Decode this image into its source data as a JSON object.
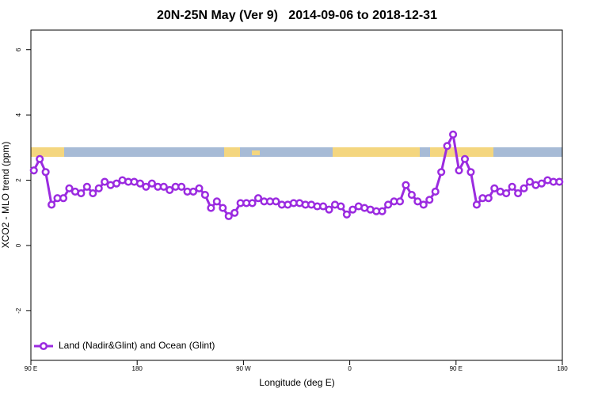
{
  "chart_data": {
    "type": "line",
    "title": "20N-25N May (Ver 9)   2014-09-06 to 2018-12-31",
    "x_label": "Longitude (deg E)",
    "y_label": "XCO2 - MLO trend (ppm)",
    "xlim": [
      90,
      540
    ],
    "ylim": [
      -3.52,
      6.6
    ],
    "xticks": [
      {
        "value": 90,
        "label": "90 E"
      },
      {
        "value": 180,
        "label": "180"
      },
      {
        "value": 270,
        "label": "90 W"
      },
      {
        "value": 360,
        "label": "0"
      },
      {
        "value": 450,
        "label": "90 E"
      },
      {
        "value": 540,
        "label": "180"
      }
    ],
    "yticks": [
      -2,
      0,
      2,
      4,
      6
    ],
    "legend": "bottom-left",
    "x": [
      92.5,
      97.5,
      102.5,
      107.5,
      112.5,
      117.5,
      122.5,
      127.5,
      132.5,
      137.5,
      142.5,
      147.5,
      152.5,
      157.5,
      162.5,
      167.5,
      172.5,
      177.5,
      182.5,
      187.5,
      192.5,
      197.5,
      202.5,
      207.5,
      212.5,
      217.5,
      222.5,
      227.5,
      232.5,
      237.5,
      242.5,
      247.5,
      252.5,
      257.5,
      262.5,
      267.5,
      272.5,
      277.5,
      282.5,
      287.5,
      292.5,
      297.5,
      302.5,
      307.5,
      312.5,
      317.5,
      322.5,
      327.5,
      332.5,
      337.5,
      342.5,
      347.5,
      352.5,
      357.5,
      362.5,
      367.5,
      372.5,
      377.5,
      382.5,
      387.5,
      392.5,
      397.5,
      402.5,
      407.5,
      412.5,
      417.5,
      422.5,
      427.5,
      432.5,
      437.5,
      442.5,
      447.5,
      452.5,
      457.5,
      462.5,
      467.5,
      472.5,
      477.5,
      482.5,
      487.5,
      492.5,
      497.5,
      502.5,
      507.5,
      512.5,
      517.5,
      522.5,
      527.5,
      532.5,
      537.5
    ],
    "series": [
      {
        "name": "Land (Nadir&Glint) and Ocean (Glint)",
        "color": "#9b2be0",
        "values": [
          2.3,
          2.65,
          2.25,
          1.25,
          1.45,
          1.45,
          1.75,
          1.65,
          1.6,
          1.8,
          1.6,
          1.75,
          1.95,
          1.85,
          1.9,
          2.0,
          1.95,
          1.95,
          1.9,
          1.8,
          1.9,
          1.8,
          1.8,
          1.7,
          1.8,
          1.8,
          1.65,
          1.65,
          1.75,
          1.55,
          1.15,
          1.35,
          1.15,
          0.9,
          1.0,
          1.3,
          1.3,
          1.3,
          1.45,
          1.35,
          1.35,
          1.35,
          1.25,
          1.25,
          1.3,
          1.3,
          1.25,
          1.25,
          1.2,
          1.2,
          1.1,
          1.25,
          1.2,
          0.95,
          1.1,
          1.2,
          1.15,
          1.1,
          1.05,
          1.05,
          1.25,
          1.35,
          1.35,
          1.85,
          1.55,
          1.35,
          1.25,
          1.4,
          1.65,
          2.25,
          3.05,
          3.4,
          2.3,
          2.65,
          2.25,
          1.25,
          1.45,
          1.45,
          1.75,
          1.65,
          1.6,
          1.8,
          1.6,
          1.75,
          1.95,
          1.85,
          1.9,
          2.0,
          1.95,
          1.95
        ]
      }
    ]
  }
}
